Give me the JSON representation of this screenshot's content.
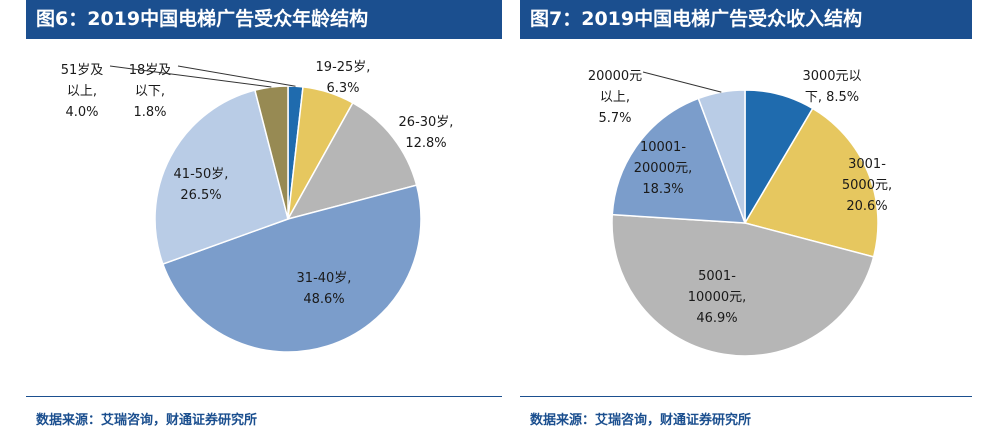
{
  "charts": [
    {
      "title": "图6：2019中国电梯广告受众年龄结构",
      "source": "数据来源：艾瑞咨询，财通证券研究所",
      "chart_data": {
        "type": "pie",
        "title": "图6：2019中国电梯广告受众年龄结构",
        "slices": [
          {
            "label": [
              "18岁及",
              "以下,",
              "1.8%"
            ],
            "category": "18岁及以下",
            "value": 1.8,
            "color": "#1F6BAE"
          },
          {
            "label": [
              "19-25岁,",
              "6.3%"
            ],
            "category": "19-25岁",
            "value": 6.3,
            "color": "#E6C75F"
          },
          {
            "label": [
              "26-30岁,",
              "12.8%"
            ],
            "category": "26-30岁",
            "value": 12.8,
            "color": "#B6B6B6"
          },
          {
            "label": [
              "31-40岁,",
              "48.6%"
            ],
            "category": "31-40岁",
            "value": 48.6,
            "color": "#7B9DCB"
          },
          {
            "label": [
              "41-50岁,",
              "26.5%"
            ],
            "category": "41-50岁",
            "value": 26.5,
            "color": "#B9CCE6"
          },
          {
            "label": [
              "51岁及",
              "以上,",
              "4.0%"
            ],
            "category": "51岁及以上",
            "value": 4.0,
            "color": "#978A53"
          }
        ]
      }
    },
    {
      "title": "图7：2019中国电梯广告受众收入结构",
      "source": "数据来源：艾瑞咨询，财通证券研究所",
      "chart_data": {
        "type": "pie",
        "title": "图7：2019中国电梯广告受众收入结构",
        "slices": [
          {
            "label": [
              "3000元以",
              "下, 8.5%"
            ],
            "category": "3000元以下",
            "value": 8.5,
            "color": "#1F6BAE"
          },
          {
            "label": [
              "3001-",
              "5000元,",
              "20.6%"
            ],
            "category": "3001-5000元",
            "value": 20.6,
            "color": "#E6C75F"
          },
          {
            "label": [
              "5001-",
              "10000元,",
              "46.9%"
            ],
            "category": "5001-10000元",
            "value": 46.9,
            "color": "#B6B6B6"
          },
          {
            "label": [
              "10001-",
              "20000元,",
              "18.3%"
            ],
            "category": "10001-20000元",
            "value": 18.3,
            "color": "#7B9DCB"
          },
          {
            "label": [
              "20000元",
              "以上,",
              "5.7%"
            ],
            "category": "20000元以上",
            "value": 5.7,
            "color": "#B9CCE6"
          }
        ]
      }
    }
  ]
}
